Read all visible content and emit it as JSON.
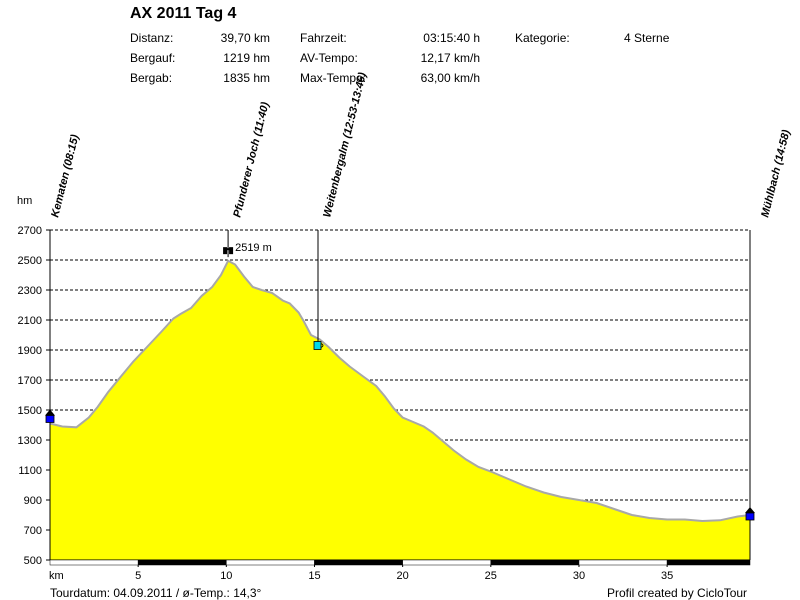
{
  "header": {
    "title": "AX 2011 Tag 4",
    "distanz_label": "Distanz:",
    "distanz_value": "39,70 km",
    "bergauf_label": "Bergauf:",
    "bergauf_value": "1219 hm",
    "bergab_label": "Bergab:",
    "bergab_value": "1835 hm",
    "fahrzeit_label": "Fahrzeit:",
    "fahrzeit_value": "03:15:40 h",
    "avtempo_label": "AV-Tempo:",
    "avtempo_value": "12,17 km/h",
    "maxtempo_label": "Max-Tempo:",
    "maxtempo_value": "63,00 km/h",
    "kategorie_label": "Kategorie:",
    "kategorie_value": "4 Sterne"
  },
  "footer": {
    "left": "Tourdatum: 04.09.2011  /  ø-Temp.: 14,3°",
    "right": "Profil created by CicloTour"
  },
  "chart_data": {
    "type": "area",
    "ylabel": "hm",
    "xlabel": "km",
    "xlim": [
      0,
      39.7
    ],
    "ylim": [
      500,
      2700
    ],
    "yticks": [
      500,
      700,
      900,
      1100,
      1300,
      1500,
      1700,
      1900,
      2100,
      2300,
      2500,
      2700
    ],
    "xticks": [
      5,
      10,
      15,
      20,
      25,
      30,
      35
    ],
    "grid": "horizontal dashed",
    "fill_color": "#ffff00",
    "line_color": "#a8a8a8",
    "series": [
      {
        "x": [
          0,
          0.7,
          1.5,
          2.2,
          2.7,
          3.3,
          4,
          4.7,
          5.5,
          6.3,
          7,
          7.4,
          8,
          8.6,
          9.2,
          9.7,
          10.1,
          10.5,
          11,
          11.5,
          12,
          12.6,
          13.2,
          13.6,
          14.1,
          14.4,
          14.8,
          15.3,
          15.8,
          16.4,
          17,
          17.8,
          18.5,
          19,
          19.5,
          20,
          20.6,
          21.2,
          21.7,
          22.3,
          22.9,
          23.6,
          24.3,
          25,
          26,
          27,
          28,
          29,
          30,
          31,
          32,
          33,
          34,
          35,
          36,
          37,
          38,
          39,
          39.7
        ],
        "y": [
          1410,
          1390,
          1385,
          1450,
          1520,
          1620,
          1720,
          1820,
          1920,
          2020,
          2110,
          2140,
          2180,
          2260,
          2320,
          2400,
          2495,
          2470,
          2390,
          2320,
          2300,
          2280,
          2230,
          2210,
          2150,
          2090,
          2000,
          1970,
          1920,
          1850,
          1790,
          1720,
          1660,
          1590,
          1510,
          1450,
          1420,
          1390,
          1350,
          1290,
          1230,
          1170,
          1120,
          1090,
          1040,
          990,
          950,
          920,
          900,
          880,
          840,
          800,
          780,
          770,
          770,
          760,
          765,
          790,
          800
        ]
      }
    ],
    "waypoints": [
      {
        "label": "Kematen (08:15)",
        "x": 0,
        "y": 1450,
        "marker": "blue-house"
      },
      {
        "label": "Pfunderer Joch (11:40)",
        "x": 10.1,
        "y": 2519,
        "marker": "binoculars",
        "annotation": "2519 m"
      },
      {
        "label": "Weitenbergalm (12:53-13:46)",
        "x": 15.2,
        "y": 1930,
        "marker": "cup"
      },
      {
        "label": "Mühlbach (14:58)",
        "x": 39.7,
        "y": 800,
        "marker": "blue-house"
      }
    ],
    "km_bar": {
      "segment_km": 5
    }
  }
}
